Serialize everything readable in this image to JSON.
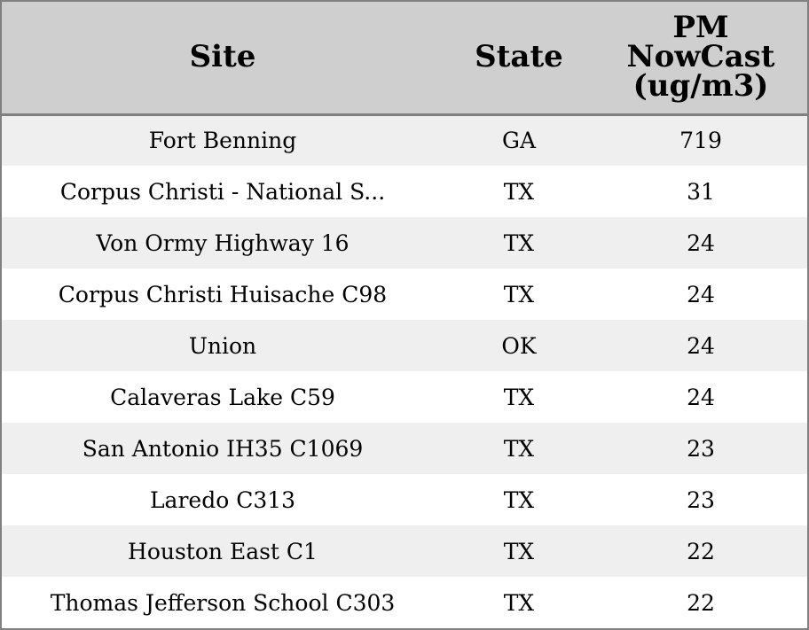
{
  "chart_data": {
    "type": "table",
    "columns": [
      "Site",
      "State",
      [
        "PM",
        "NowCast",
        "(ug/m3)"
      ]
    ],
    "rows": [
      {
        "site": "Fort Benning",
        "state": "GA",
        "pm": "719"
      },
      {
        "site": "Corpus Christi - National S...",
        "state": "TX",
        "pm": "31"
      },
      {
        "site": "Von Ormy Highway 16",
        "state": "TX",
        "pm": "24"
      },
      {
        "site": "Corpus Christi Huisache C98",
        "state": "TX",
        "pm": "24"
      },
      {
        "site": "Union",
        "state": "OK",
        "pm": "24"
      },
      {
        "site": "Calaveras Lake C59",
        "state": "TX",
        "pm": "24"
      },
      {
        "site": "San Antonio IH35 C1069",
        "state": "TX",
        "pm": "23"
      },
      {
        "site": "Laredo C313",
        "state": "TX",
        "pm": "23"
      },
      {
        "site": "Houston East C1",
        "state": "TX",
        "pm": "22"
      },
      {
        "site": "Thomas Jefferson School C303",
        "state": "TX",
        "pm": "22"
      }
    ]
  },
  "colors": {
    "header_bg": "#cfcfcf",
    "row_alt_bg": "#efefef",
    "row_bg": "#ffffff",
    "border": "#808080"
  }
}
